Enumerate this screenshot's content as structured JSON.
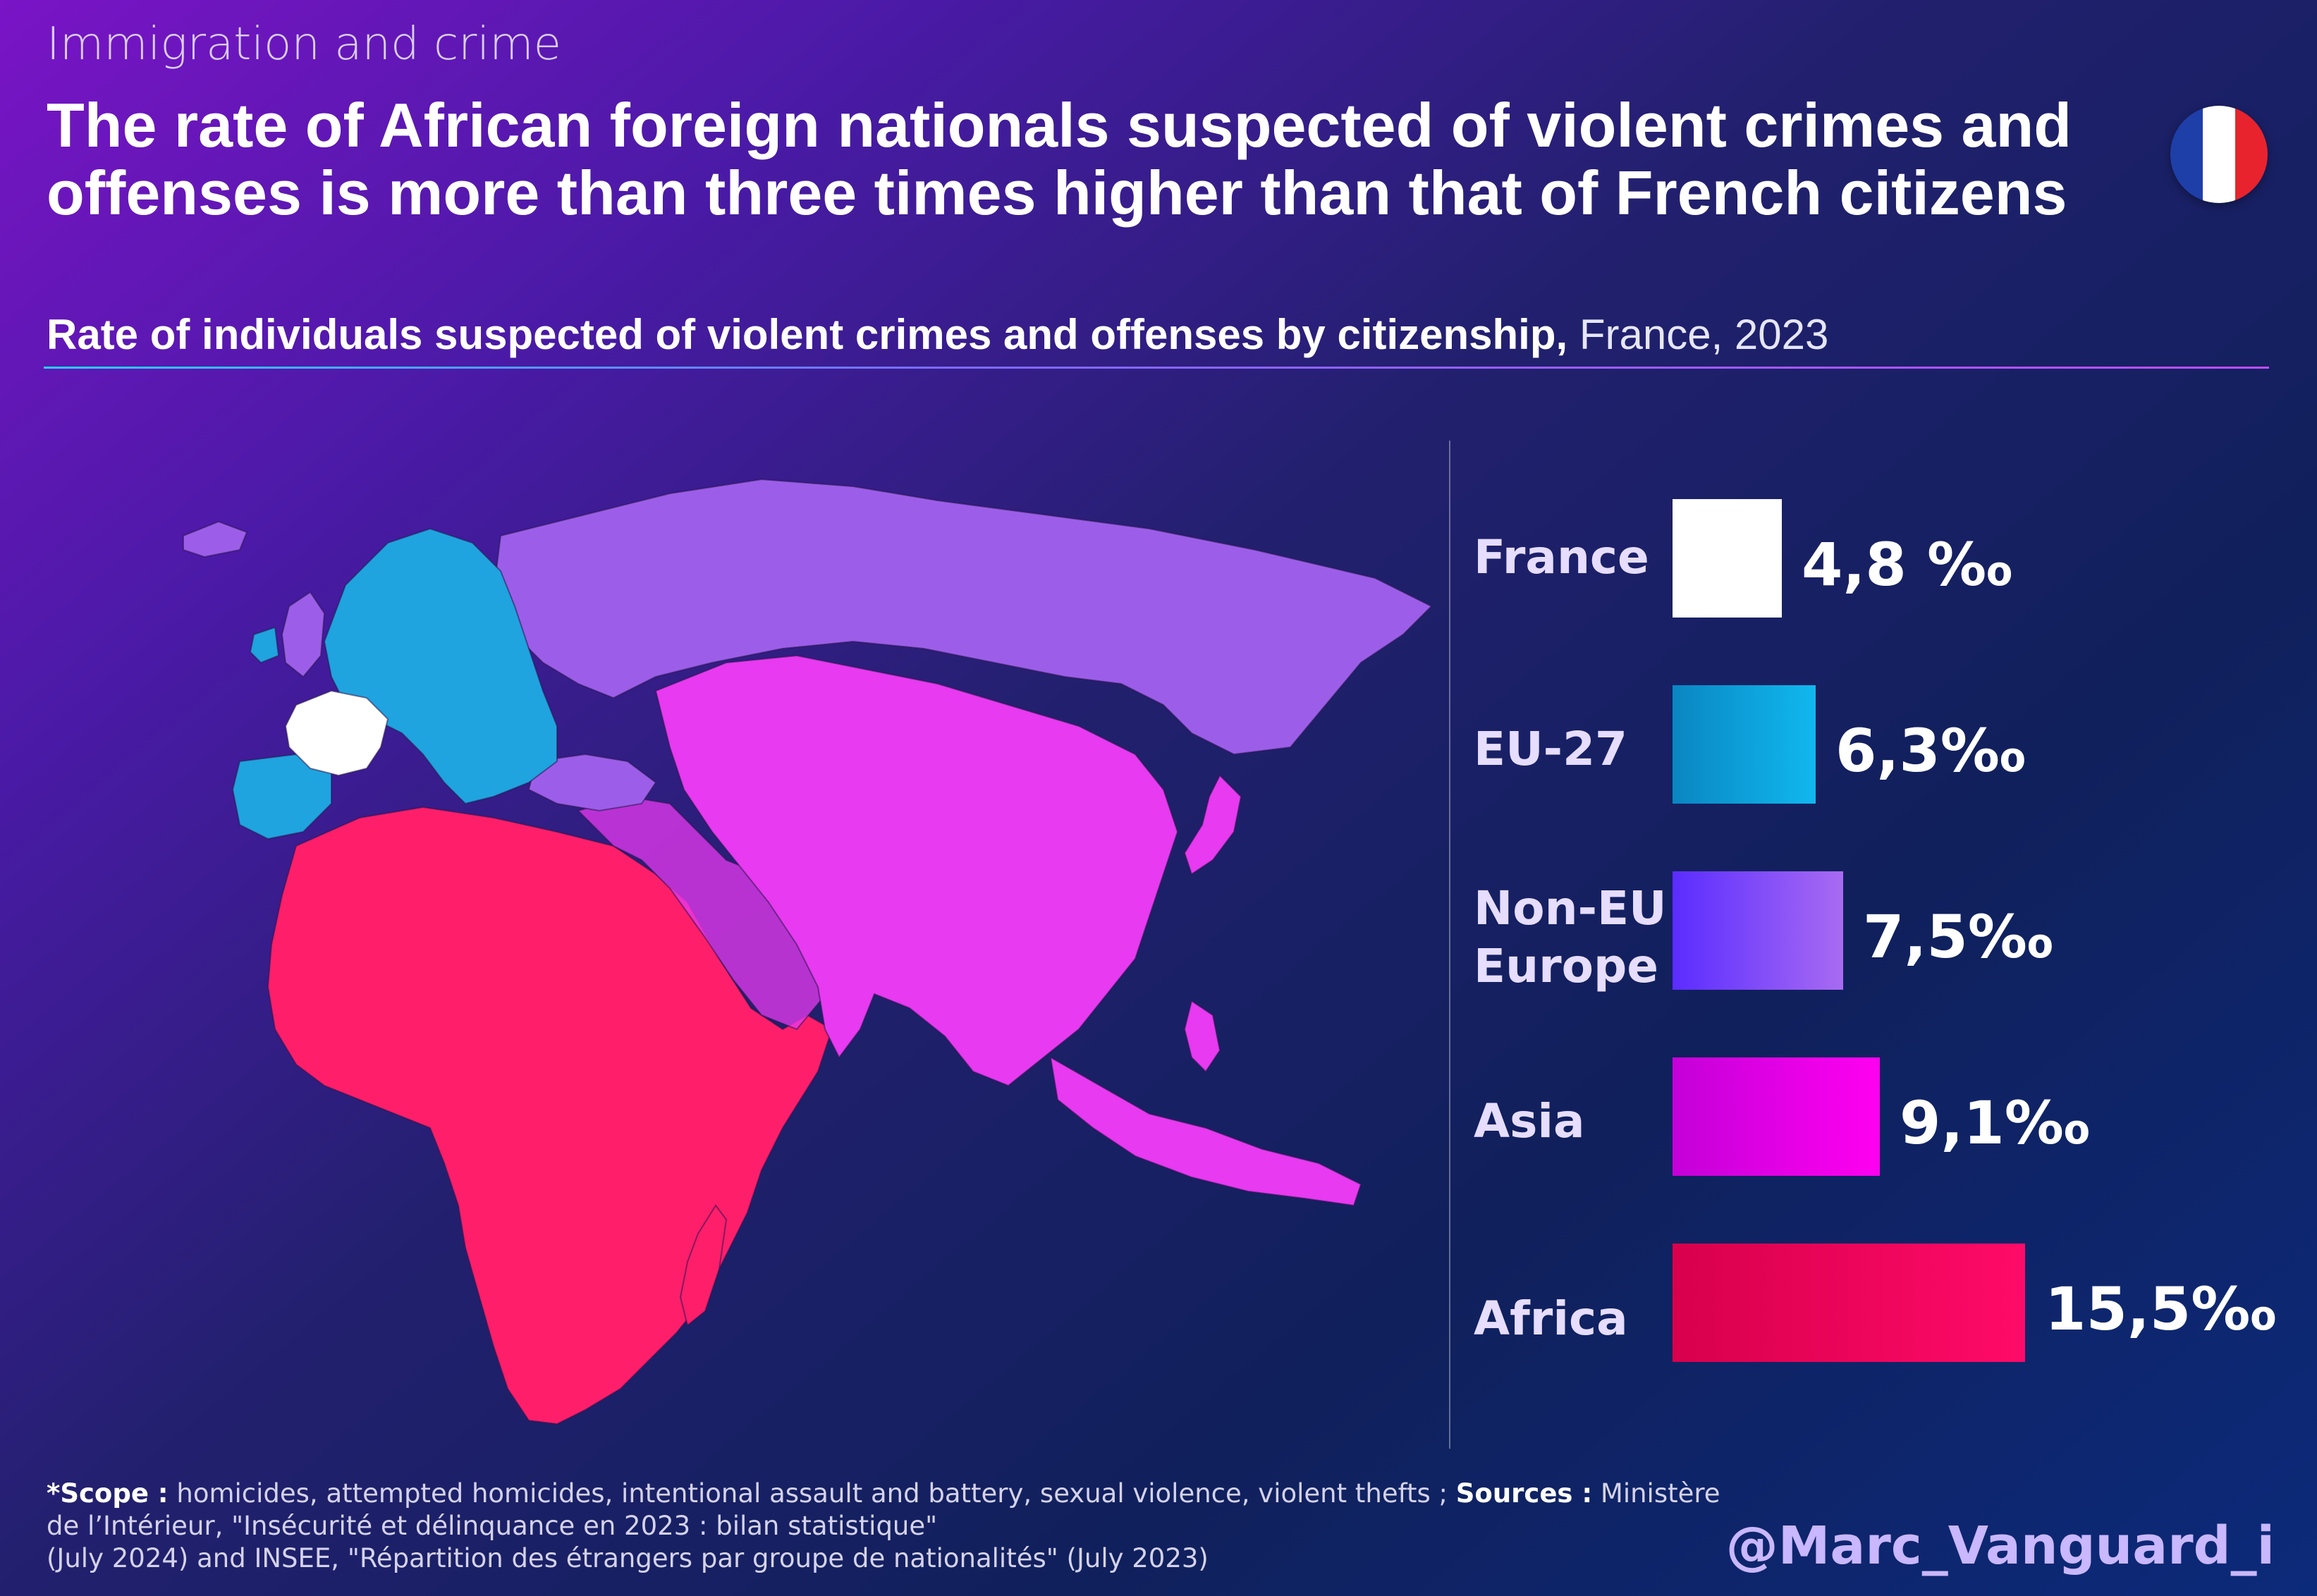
{
  "header": {
    "kicker": "Immigration and crime",
    "headline_line1": "The rate of African foreign nationals suspected of violent crimes and",
    "headline_line2": "offenses is more than three times higher than that of French citizens"
  },
  "subtitle": {
    "bold": "Rate of individuals suspected of violent crimes and offenses by citizenship,",
    "light": " France, 2023"
  },
  "chart_data": {
    "type": "bar",
    "orientation": "horizontal",
    "title": "Rate of individuals suspected of violent crimes and offenses by citizenship, France, 2023",
    "unit": "‰",
    "categories": [
      "France",
      "EU-27",
      "Non-EU Europe",
      "Asia",
      "Africa"
    ],
    "values": [
      4.8,
      6.3,
      7.5,
      9.1,
      15.5
    ],
    "value_labels": [
      "4,8 ‰",
      "6,3‰",
      "7,5‰",
      "9,1‰",
      "15,5‰"
    ],
    "bar_colors": [
      [
        "#ffffff",
        "#ffffff"
      ],
      [
        "#0a86c2",
        "#10b8ef"
      ],
      [
        "#5a2cff",
        "#a86bf2"
      ],
      [
        "#c400d8",
        "#ff00f0"
      ],
      [
        "#d8004c",
        "#ff0a68"
      ]
    ],
    "legend": "none",
    "grid": false
  },
  "map_regions": [
    {
      "region": "France",
      "color": "#ffffff"
    },
    {
      "region": "EU-27",
      "color": "#1fa4e0"
    },
    {
      "region": "Non-EU Europe",
      "color": "#9c5ee8"
    },
    {
      "region": "Asia",
      "color": "#e83af0"
    },
    {
      "region": "Africa",
      "color": "#ff1e6a"
    }
  ],
  "footer": {
    "scope_label": "*Scope :",
    "scope_text": " homicides, attempted homicides, intentional assault and battery, sexual violence, violent thefts ; ",
    "sources_label": "Sources :",
    "sources_text1": " Ministère",
    "line2": "de l’Intérieur, \"Insécurité et délinquance en 2023 : bilan statistique\"",
    "line3": "(July 2024) and INSEE, \"Répartition des étrangers par groupe de nationalités\" (July 2023)"
  },
  "handle": "@Marc_Vanguard_i",
  "flag_colors": [
    "#1f3fa8",
    "#ffffff",
    "#e8232e"
  ]
}
